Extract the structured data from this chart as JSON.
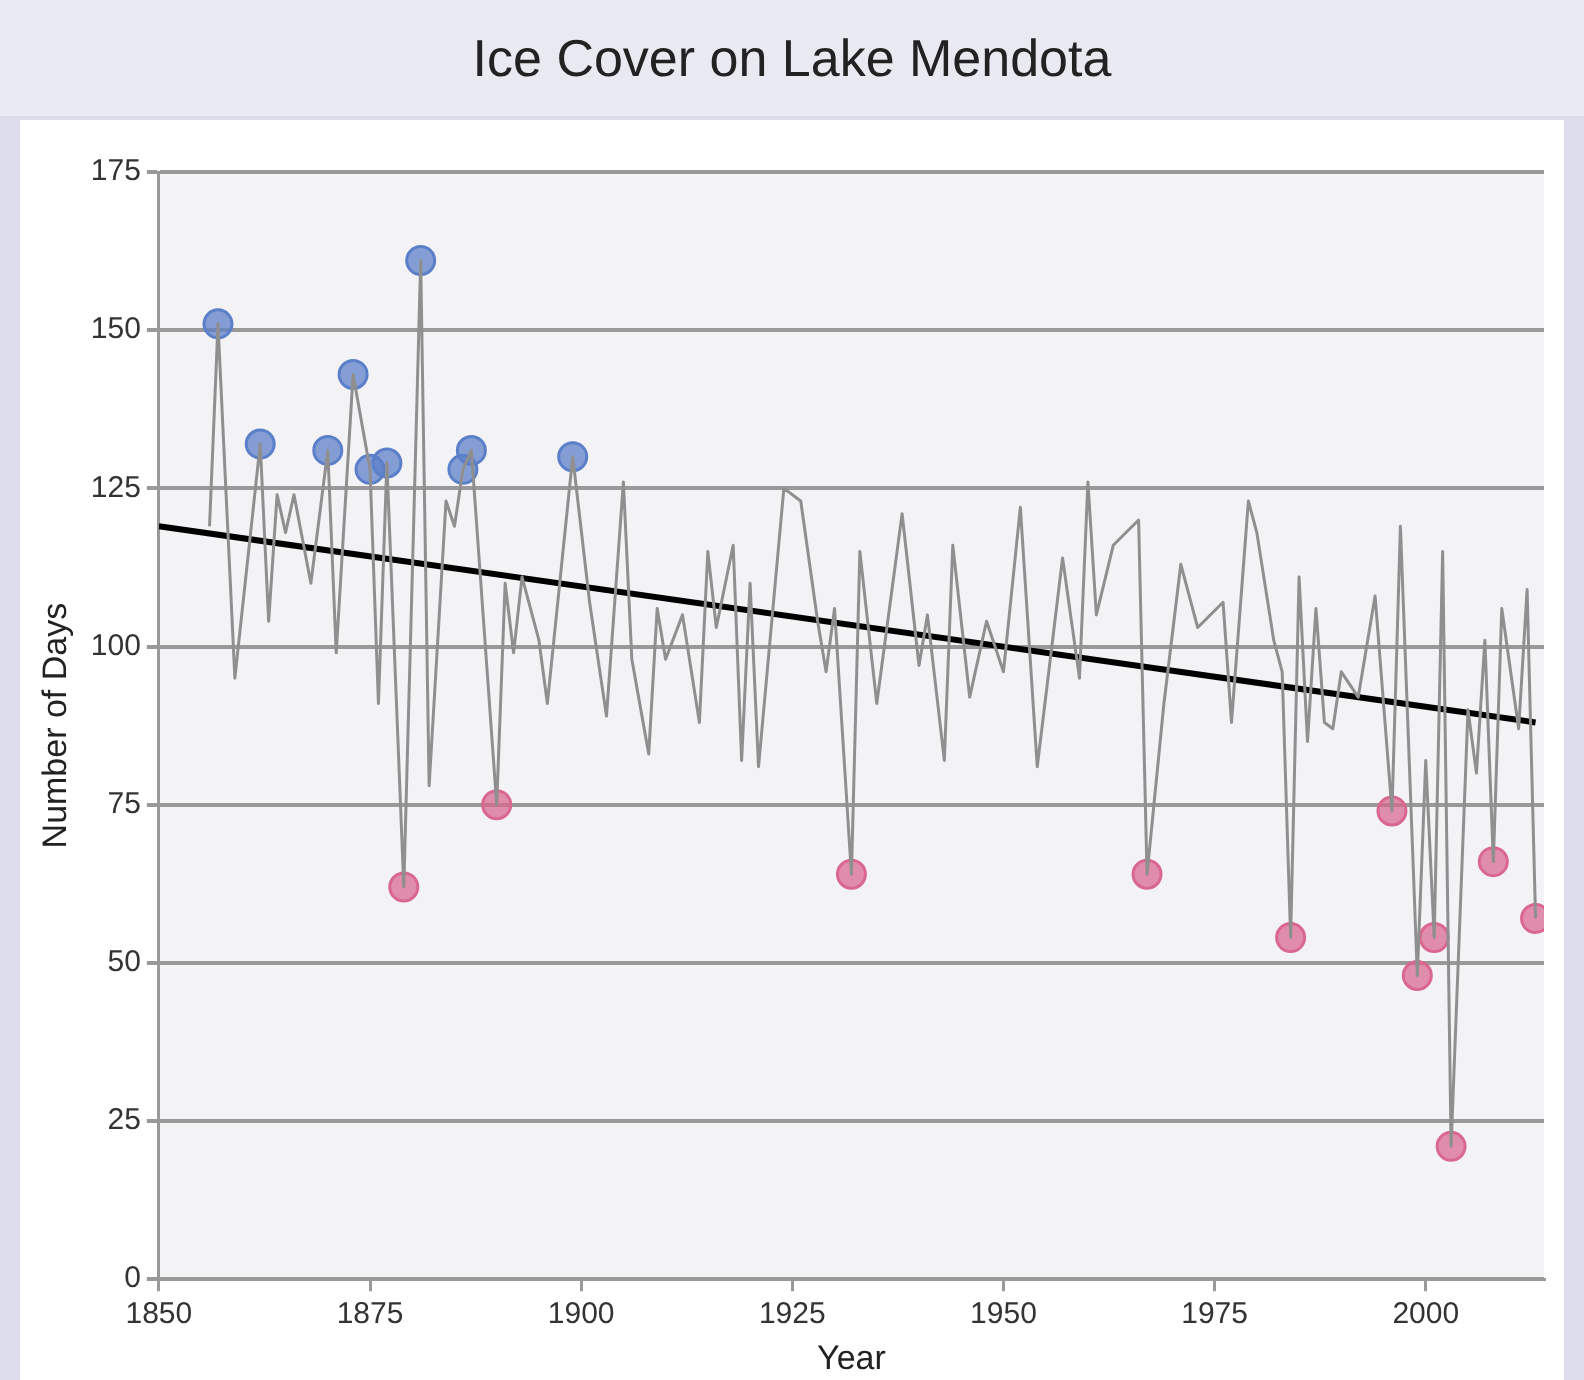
{
  "chart_data": {
    "type": "line",
    "title": "Ice Cover on Lake Mendota",
    "xlabel": "Year",
    "ylabel": "Number of Days",
    "xlim": [
      1850,
      2014
    ],
    "xticks": [
      1850,
      1875,
      1900,
      1925,
      1950,
      1975,
      2000
    ],
    "ylim": [
      0,
      175
    ],
    "yticks": [
      0,
      25,
      50,
      75,
      100,
      125,
      150,
      175
    ],
    "grid": "y",
    "legend": false,
    "series": [
      {
        "type": "line",
        "color": "#8f8f8f",
        "marker": "none",
        "x": [
          1856,
          1857,
          1859,
          1862,
          1863,
          1864,
          1865,
          1866,
          1868,
          1870,
          1871,
          1873,
          1875,
          1876,
          1877,
          1879,
          1880,
          1881,
          1882,
          1884,
          1885,
          1886,
          1887,
          1890,
          1891,
          1892,
          1893,
          1895,
          1896,
          1897,
          1899,
          1901,
          1903,
          1905,
          1906,
          1908,
          1909,
          1910,
          1912,
          1914,
          1915,
          1916,
          1918,
          1919,
          1920,
          1921,
          1924,
          1926,
          1928,
          1929,
          1930,
          1932,
          1933,
          1935,
          1938,
          1940,
          1941,
          1943,
          1944,
          1946,
          1948,
          1950,
          1952,
          1954,
          1957,
          1959,
          1960,
          1961,
          1963,
          1966,
          1967,
          1969,
          1971,
          1973,
          1976,
          1977,
          1979,
          1980,
          1982,
          1983,
          1984,
          1985,
          1986,
          1987,
          1988,
          1989,
          1990,
          1992,
          1994,
          1996,
          1997,
          1999,
          2000,
          2001,
          2002,
          2003,
          2005,
          2006,
          2007,
          2008,
          2009,
          2011,
          2012,
          2013
        ],
        "values": [
          119,
          151,
          95,
          132,
          104,
          124,
          118,
          124,
          110,
          131,
          99,
          143,
          128,
          91,
          129,
          62,
          111,
          161,
          78,
          123,
          119,
          128,
          131,
          75,
          110,
          99,
          111,
          101,
          91,
          104,
          130,
          107,
          89,
          126,
          98,
          83,
          106,
          98,
          105,
          88,
          115,
          103,
          116,
          82,
          110,
          81,
          125,
          123,
          104,
          96,
          106,
          64,
          115,
          91,
          121,
          97,
          105,
          82,
          116,
          92,
          104,
          96,
          122,
          81,
          114,
          95,
          126,
          105,
          116,
          120,
          64,
          91,
          113,
          103,
          107,
          88,
          123,
          118,
          101,
          96,
          54,
          111,
          85,
          106,
          88,
          87,
          96,
          92,
          108,
          74,
          119,
          48,
          82,
          54,
          115,
          21,
          90,
          80,
          101,
          66,
          106,
          87,
          109,
          57
        ]
      },
      {
        "type": "line",
        "color": "#000000",
        "marker": "none",
        "x": [
          1850,
          2013
        ],
        "values": [
          119,
          88
        ]
      },
      {
        "type": "scatter",
        "color": "#5b7fc9",
        "marker": "circle",
        "x": [
          1857,
          1862,
          1870,
          1873,
          1875,
          1877,
          1881,
          1886,
          1887,
          1899
        ],
        "values": [
          151,
          132,
          131,
          143,
          128,
          129,
          161,
          128,
          131,
          130
        ]
      },
      {
        "type": "scatter",
        "color": "#d9678f",
        "marker": "circle",
        "x": [
          1879,
          1890,
          1932,
          1967,
          1984,
          1996,
          1999,
          2001,
          2003,
          2008,
          2013
        ],
        "values": [
          62,
          75,
          64,
          64,
          54,
          74,
          48,
          54,
          21,
          66,
          57
        ]
      }
    ]
  }
}
